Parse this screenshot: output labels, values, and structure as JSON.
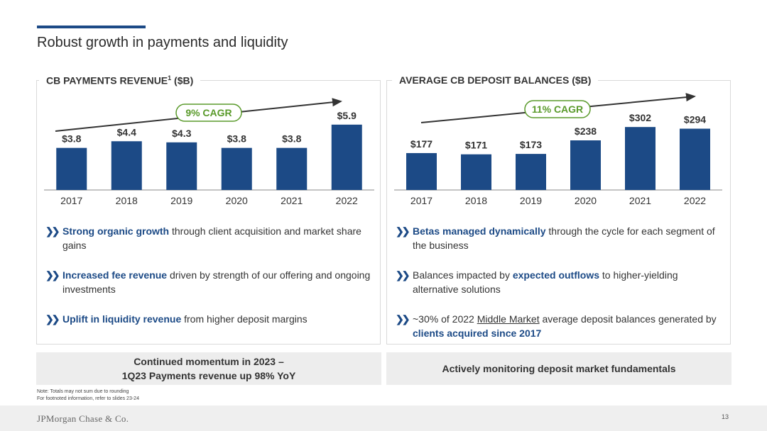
{
  "page_title": "Robust growth in payments and liquidity",
  "left_panel": {
    "title": "CB PAYMENTS REVENUE",
    "title_sup": "1",
    "title_suffix": " ($B)",
    "cagr_label": "9% CAGR",
    "bullets": [
      {
        "highlight": "Strong organic growth",
        "rest": " through client acquisition and market share gains"
      },
      {
        "highlight": "Increased fee revenue",
        "rest": " driven by strength of our offering and ongoing investments"
      },
      {
        "highlight": "Uplift in liquidity revenue",
        "rest": " from higher deposit margins"
      }
    ],
    "callout_line1": "Continued momentum in 2023 –",
    "callout_line2": "1Q23 Payments revenue up 98% YoY"
  },
  "right_panel": {
    "title": "AVERAGE CB DEPOSIT BALANCES ($B)",
    "cagr_label": "11% CAGR",
    "bullet1_highlight": "Betas managed dynamically",
    "bullet1_rest": " through the cycle for each segment of the business",
    "bullet2_pre": "Balances impacted by ",
    "bullet2_highlight": "expected outflows",
    "bullet2_rest": " to higher-yielding alternative solutions",
    "bullet3_pre": "~30% of 2022 ",
    "bullet3_underline": "Middle Market",
    "bullet3_mid": " average deposit balances generated by ",
    "bullet3_highlight": "clients acquired since 2017",
    "callout": "Actively monitoring deposit market fundamentals"
  },
  "chart_data": [
    {
      "type": "bar",
      "title": "CB PAYMENTS REVENUE¹ ($B)",
      "categories": [
        "2017",
        "2018",
        "2019",
        "2020",
        "2021",
        "2022"
      ],
      "values": [
        3.8,
        4.4,
        4.3,
        3.8,
        3.8,
        5.9
      ],
      "labels": [
        "$3.8",
        "$4.4",
        "$4.3",
        "$3.8",
        "$3.8",
        "$5.9"
      ],
      "ylim": [
        0,
        6.4
      ],
      "annotation": "9% CAGR",
      "color": "#1c4a86"
    },
    {
      "type": "bar",
      "title": "AVERAGE CB DEPOSIT BALANCES ($B)",
      "categories": [
        "2017",
        "2018",
        "2019",
        "2020",
        "2021",
        "2022"
      ],
      "values": [
        177,
        171,
        173,
        238,
        302,
        294
      ],
      "labels": [
        "$177",
        "$171",
        "$173",
        "$238",
        "$302",
        "$294"
      ],
      "ylim": [
        0,
        340
      ],
      "annotation": "11% CAGR",
      "color": "#1c4a86"
    }
  ],
  "colors": {
    "accent": "#1c4a86",
    "cagr_green": "#5a9a2b"
  },
  "note_line1": "Note: Totals may not sum due to rounding",
  "note_line2": "For footnoted information, refer to slides 23-24",
  "logo": "JPMorgan Chase & Co.",
  "page_number": "13"
}
